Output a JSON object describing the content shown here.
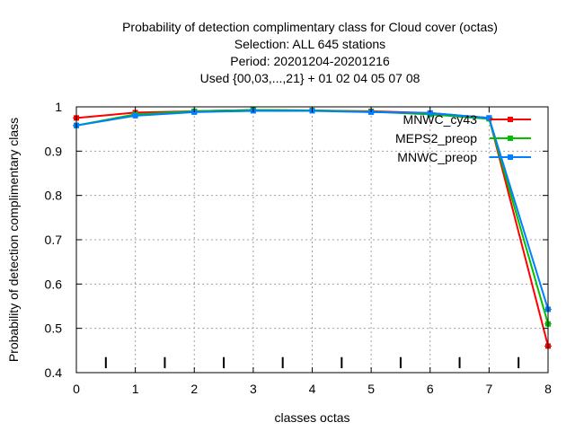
{
  "chart_data": {
    "type": "line",
    "title_lines": [
      "Probability of detection complimentary class  for Cloud cover (octas)",
      "Selection: ALL    645 stations",
      "Period: 20201204-20201216",
      "Used {00,03,...,21} + 01 02 04 05 07 08"
    ],
    "xlabel": "classes octas",
    "ylabel": "Probability of detection complimentary class",
    "xlim": [
      0,
      8
    ],
    "ylim": [
      0.4,
      1.0
    ],
    "x_ticks": [
      "0",
      "1",
      "2",
      "3",
      "4",
      "5",
      "6",
      "7",
      "8"
    ],
    "y_ticks": [
      "0.4",
      "0.5",
      "0.6",
      "0.7",
      "0.8",
      "0.9",
      "1"
    ],
    "grid": true,
    "legend_position": "top-right",
    "class_bounds": [
      0.5,
      1.5,
      2.5,
      3.5,
      4.5,
      5.5,
      6.5,
      7.5
    ],
    "x": [
      0,
      1,
      2,
      3,
      4,
      5,
      6,
      7,
      8
    ],
    "series": [
      {
        "name": "MNWC_cy43",
        "color": "#ff0000",
        "values": [
          0.975,
          0.987,
          0.99,
          0.993,
          0.992,
          0.99,
          0.986,
          0.975,
          0.46
        ]
      },
      {
        "name": "MEPS2_preop",
        "color": "#00c000",
        "values": [
          0.958,
          0.983,
          0.99,
          0.993,
          0.992,
          0.989,
          0.983,
          0.973,
          0.51
        ]
      },
      {
        "name": "MNWC_preop",
        "color": "#0080ff",
        "values": [
          0.958,
          0.98,
          0.988,
          0.991,
          0.991,
          0.988,
          0.986,
          0.975,
          0.543
        ]
      }
    ]
  }
}
